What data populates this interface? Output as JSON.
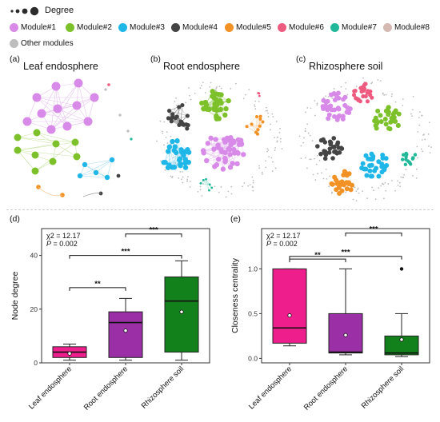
{
  "legend": {
    "degree_label": "Degree",
    "modules": [
      {
        "label": "Module#1",
        "color": "#d88ae8"
      },
      {
        "label": "Module#2",
        "color": "#7dc12a"
      },
      {
        "label": "Module#3",
        "color": "#1fb6e8"
      },
      {
        "label": "Module#4",
        "color": "#444444"
      },
      {
        "label": "Module#5",
        "color": "#f39224"
      },
      {
        "label": "Module#6",
        "color": "#ee5a7f"
      },
      {
        "label": "Module#7",
        "color": "#20b898"
      },
      {
        "label": "Module#8",
        "color": "#d4b9b2"
      }
    ],
    "other": {
      "label": "Other modules",
      "color": "#bdbdbd"
    }
  },
  "networks": {
    "a": {
      "tag": "(a)",
      "title": "Leaf endosphere"
    },
    "b": {
      "tag": "(b)",
      "title": "Root endosphere"
    },
    "c": {
      "tag": "(c)",
      "title": "Rhizosphere soil"
    }
  },
  "chart_data": [
    {
      "type": "box",
      "tag": "(d)",
      "ylabel": "Node degree",
      "ylim": [
        0,
        50
      ],
      "yticks": [
        0,
        20,
        40
      ],
      "categories": [
        "Leaf endosphere",
        "Root endosphere",
        "Rhizosphere soil"
      ],
      "colors": [
        "#ee1f8c",
        "#9b2fa6",
        "#12811b"
      ],
      "boxes": [
        {
          "min": 1,
          "q1": 2,
          "median": 4,
          "q3": 6,
          "max": 7,
          "mean": 3.5,
          "outliers": []
        },
        {
          "min": 1,
          "q1": 2,
          "median": 15,
          "q3": 19,
          "max": 24,
          "mean": 12,
          "outliers": []
        },
        {
          "min": 1,
          "q1": 4,
          "median": 23,
          "q3": 32,
          "max": 38,
          "mean": 19,
          "outliers": []
        }
      ],
      "stats": {
        "chi": "χ2 = 12.17",
        "p_label": "P",
        "p_value": " = 0.002"
      },
      "brackets": [
        {
          "from": 0,
          "to": 1,
          "label": "**",
          "y": 28
        },
        {
          "from": 0,
          "to": 2,
          "label": "***",
          "y": 40
        },
        {
          "from": 1,
          "to": 2,
          "label": "***",
          "y": 48
        }
      ]
    },
    {
      "type": "box",
      "tag": "(e)",
      "ylabel": "Closeness centrality",
      "ylim": [
        -0.05,
        1.45
      ],
      "yticks": [
        0.0,
        0.5,
        1.0
      ],
      "ytick_labels": [
        "0.0",
        "0.5",
        "1.0"
      ],
      "categories": [
        "Leaf endosphere",
        "Root endosphere",
        "Rhizosphere soil"
      ],
      "colors": [
        "#ee1f8c",
        "#9b2fa6",
        "#12811b"
      ],
      "boxes": [
        {
          "min": 0.14,
          "q1": 0.17,
          "median": 0.34,
          "q3": 1.0,
          "max": 1.0,
          "mean": 0.48,
          "outliers": []
        },
        {
          "min": 0.04,
          "q1": 0.06,
          "median": 0.07,
          "q3": 0.5,
          "max": 1.0,
          "mean": 0.26,
          "outliers": []
        },
        {
          "min": 0.02,
          "q1": 0.04,
          "median": 0.06,
          "q3": 0.25,
          "max": 0.5,
          "mean": 0.21,
          "outliers": [
            1.0
          ]
        }
      ],
      "stats": {
        "chi": "χ2 = 12.17",
        "p_label": "P",
        "p_value": " = 0.002"
      },
      "brackets": [
        {
          "from": 0,
          "to": 1,
          "label": "**",
          "y": 1.11
        },
        {
          "from": 0,
          "to": 2,
          "label": "***",
          "y": 1.14
        },
        {
          "from": 1,
          "to": 2,
          "label": "***",
          "y": 1.4
        }
      ]
    }
  ]
}
